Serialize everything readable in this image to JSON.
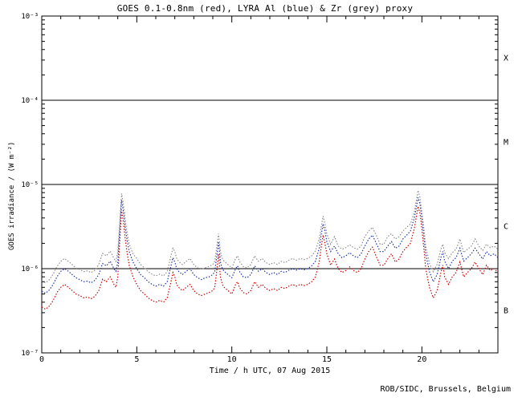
{
  "credit": "ROB/SIDC, Brussels, Belgium",
  "chart_data": {
    "type": "line",
    "title": "GOES 0.1-0.8nm (red), LYRA Al (blue) & Zr (grey) proxy",
    "xlabel": "Time / h UTC, 07 Aug 2015",
    "ylabel": "GOES irradiance / (W m⁻²)",
    "xlim": [
      0,
      24
    ],
    "ylim_log10": [
      -7,
      -3
    ],
    "grid": "off",
    "legend": "none (colors named in title)",
    "x_ticks": {
      "major": [
        0,
        5,
        10,
        15,
        20
      ],
      "labels": [
        "0",
        "5",
        "10",
        "15",
        "20"
      ],
      "minor_step": 1
    },
    "y_ticks": [
      {
        "exp": -3,
        "label": "10⁻³"
      },
      {
        "exp": -4,
        "label": "10⁻⁴"
      },
      {
        "exp": -5,
        "label": "10⁻⁵"
      },
      {
        "exp": -6,
        "label": "10⁻⁶"
      },
      {
        "exp": -7,
        "label": "10⁻⁷"
      }
    ],
    "hlines": [
      0.0001,
      1e-05,
      1e-06
    ],
    "flare_classes": [
      {
        "label": "X",
        "mid_exp": -3.5
      },
      {
        "label": "M",
        "mid_exp": -4.5
      },
      {
        "label": "C",
        "mid_exp": -5.5
      },
      {
        "label": "B",
        "mid_exp": -6.5
      }
    ],
    "unit_scale": 1e-07,
    "x": [
      0,
      0.2,
      0.4,
      0.6,
      0.8,
      1,
      1.2,
      1.4,
      1.6,
      1.8,
      2,
      2.2,
      2.4,
      2.6,
      2.8,
      3,
      3.2,
      3.4,
      3.6,
      3.8,
      3.9,
      4,
      4.1,
      4.2,
      4.3,
      4.4,
      4.5,
      4.6,
      4.8,
      5,
      5.2,
      5.4,
      5.6,
      5.8,
      6,
      6.2,
      6.4,
      6.6,
      6.8,
      6.9,
      7,
      7.1,
      7.2,
      7.4,
      7.6,
      7.8,
      8,
      8.2,
      8.4,
      8.6,
      8.8,
      9,
      9.1,
      9.2,
      9.3,
      9.4,
      9.5,
      9.6,
      9.8,
      10,
      10.2,
      10.3,
      10.4,
      10.6,
      10.8,
      11,
      11.2,
      11.4,
      11.6,
      11.8,
      12,
      12.2,
      12.4,
      12.6,
      12.8,
      13,
      13.2,
      13.4,
      13.6,
      13.8,
      14,
      14.2,
      14.4,
      14.6,
      14.7,
      14.8,
      14.9,
      15,
      15.2,
      15.4,
      15.6,
      15.8,
      16,
      16.2,
      16.4,
      16.6,
      16.8,
      17,
      17.2,
      17.4,
      17.6,
      17.8,
      18,
      18.2,
      18.4,
      18.6,
      18.8,
      19,
      19.2,
      19.4,
      19.6,
      19.7,
      19.8,
      19.9,
      20,
      20.1,
      20.2,
      20.4,
      20.6,
      20.8,
      21,
      21.1,
      21.2,
      21.4,
      21.6,
      21.8,
      22,
      22.2,
      22.4,
      22.6,
      22.8,
      23,
      23.2,
      23.4,
      23.6,
      23.8,
      24
    ],
    "series": [
      {
        "key": "goes",
        "name": "GOES 0.1-0.8nm",
        "color": "#cc0000",
        "values": [
          3.5,
          3.3,
          3.6,
          4.2,
          5.2,
          6,
          6.5,
          6,
          5.5,
          5,
          4.8,
          4.5,
          4.6,
          4.4,
          4.7,
          5.5,
          7.5,
          7,
          8,
          6.5,
          6,
          8,
          20,
          50,
          35,
          22,
          15,
          11,
          8,
          6.5,
          5.5,
          5,
          4.5,
          4.2,
          4,
          4.2,
          4,
          4.5,
          7,
          9,
          8,
          6.5,
          6,
          5.5,
          6,
          6.5,
          5.5,
          5,
          4.8,
          5,
          5.2,
          5.5,
          6,
          9,
          15,
          8,
          6.5,
          6,
          5.5,
          5,
          6.5,
          7,
          6,
          5.2,
          5,
          5.5,
          7,
          6,
          6.5,
          5.8,
          5.5,
          5.8,
          5.5,
          6,
          5.8,
          6.2,
          6.5,
          6.2,
          6.5,
          6.3,
          6.5,
          7,
          8,
          12,
          18,
          25,
          20,
          15,
          11,
          13,
          10,
          9,
          9.5,
          10.5,
          9.5,
          9,
          10,
          13,
          16,
          18,
          14,
          11,
          11,
          13,
          15,
          12,
          13,
          16,
          18,
          20,
          30,
          40,
          55,
          45,
          30,
          18,
          10,
          6,
          4.5,
          5.5,
          9,
          11,
          8,
          6.5,
          8,
          9,
          12,
          8,
          9,
          10,
          12,
          10,
          8.5,
          11,
          9.5,
          10,
          9
        ]
      },
      {
        "key": "lyra-al",
        "name": "LYRA Al proxy",
        "color": "#2233aa",
        "values": [
          5.4,
          5.1,
          5.6,
          6.5,
          8,
          9.3,
          10,
          9.3,
          8.5,
          7.8,
          7.4,
          7,
          7.1,
          6.8,
          7.3,
          8.5,
          11.5,
          10.8,
          12.3,
          10,
          9.3,
          12,
          28,
          65,
          47,
          30,
          21,
          16,
          12,
          10,
          8.5,
          7.8,
          7,
          6.5,
          6.2,
          6.5,
          6.2,
          7,
          10.8,
          13.5,
          12,
          10,
          9.3,
          8.5,
          9.3,
          10,
          8.5,
          7.8,
          7.4,
          7.8,
          8,
          8.5,
          9.3,
          13.5,
          21,
          12,
          10,
          9.3,
          8.5,
          7.8,
          10,
          10.8,
          9.3,
          8,
          7.8,
          8.5,
          10.8,
          9.3,
          10,
          9,
          8.5,
          9,
          8.5,
          9.3,
          9,
          9.6,
          10,
          9.6,
          10,
          9.7,
          10,
          10.8,
          12.3,
          17.5,
          25,
          34,
          28,
          21,
          16,
          18.5,
          15,
          13.5,
          14.2,
          15.5,
          14.2,
          13.5,
          15,
          18.5,
          22.5,
          25,
          20,
          16,
          16,
          18.5,
          21,
          17.5,
          18.5,
          22.5,
          25,
          28,
          40,
          52,
          70,
          58,
          40,
          25,
          15,
          9.2,
          7,
          8.5,
          13.5,
          16,
          12.3,
          10,
          12.3,
          13.5,
          17.5,
          12.3,
          13.5,
          15,
          17.5,
          15,
          13,
          16,
          14.2,
          15,
          13.5
        ]
      },
      {
        "key": "lyra-zr",
        "name": "LYRA Zr proxy",
        "color": "#8d8d8d",
        "values": [
          7.2,
          6.8,
          7.4,
          8.6,
          10.6,
          12.2,
          13.2,
          12.2,
          11.2,
          10.2,
          9.8,
          9.2,
          9.4,
          9,
          9.6,
          11.2,
          15.2,
          14.2,
          16.2,
          13.2,
          12.2,
          16,
          34,
          78,
          57,
          37,
          26,
          19.5,
          15,
          13.2,
          11.2,
          10.2,
          9.2,
          8.6,
          8.2,
          8.6,
          8.2,
          9.2,
          14.2,
          17.5,
          16,
          13.2,
          12.2,
          11.2,
          12.2,
          13.2,
          11.2,
          10.2,
          9.8,
          10.2,
          10.6,
          11.2,
          12.2,
          17.5,
          26,
          16,
          13.2,
          12.2,
          11.2,
          10.2,
          13.2,
          14.2,
          12.2,
          10.6,
          10.2,
          11.2,
          14.2,
          12.2,
          13.2,
          11.8,
          11.2,
          11.8,
          11.2,
          12.2,
          11.8,
          12.6,
          13.2,
          12.6,
          13.2,
          12.8,
          13.2,
          14.2,
          16.2,
          22.5,
          31,
          42,
          34,
          26,
          19.5,
          24,
          18.5,
          17,
          17.8,
          19.2,
          17.8,
          17,
          18.5,
          24,
          28,
          31,
          25,
          19.5,
          19.5,
          24,
          26,
          22.5,
          24,
          28,
          31,
          34,
          47,
          62,
          85,
          70,
          47,
          31,
          18.5,
          11.5,
          9.2,
          11.2,
          17,
          19.5,
          15.5,
          13.2,
          15.5,
          17,
          22.5,
          15.5,
          17,
          18.5,
          22.5,
          18.5,
          16.5,
          19.5,
          17.8,
          18.5,
          17
        ]
      }
    ]
  }
}
